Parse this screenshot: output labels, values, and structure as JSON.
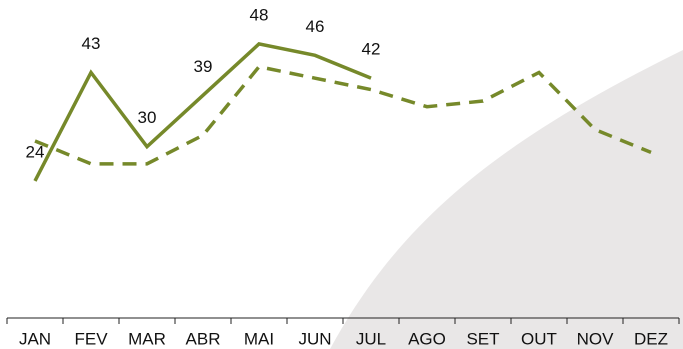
{
  "chart_data": {
    "type": "line",
    "categories": [
      "JAN",
      "FEV",
      "MAR",
      "ABR",
      "MAI",
      "JUN",
      "JUL",
      "AGO",
      "SET",
      "OUT",
      "NOV",
      "DEZ"
    ],
    "series": [
      {
        "color": "#76892a",
        "style": "solid",
        "data_labels": true,
        "values": [
          24,
          43,
          30,
          39,
          48,
          46,
          42,
          null,
          null,
          null,
          null,
          null
        ]
      },
      {
        "color": "#76892a",
        "style": "dashed",
        "data_labels": false,
        "values": [
          31,
          27,
          27,
          32,
          44,
          42,
          40,
          37,
          38,
          43,
          33,
          29
        ]
      }
    ]
  }
}
